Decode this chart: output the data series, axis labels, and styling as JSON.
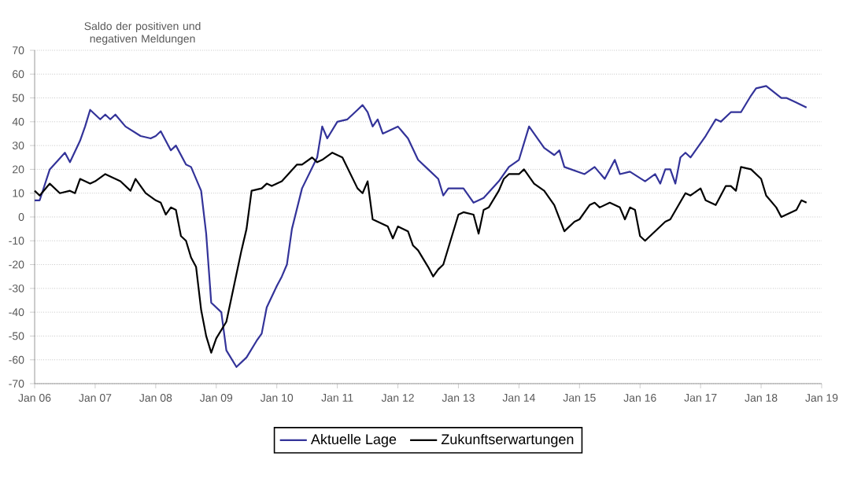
{
  "chart_data": {
    "type": "line",
    "ylabel": "Saldo der positiven und negativen Meldungen",
    "x": [
      "2006-01",
      "2006-02",
      "2006-04",
      "2006-07",
      "2006-08",
      "2006-10",
      "2006-11",
      "2006-12",
      "2007-02",
      "2007-03",
      "2007-04",
      "2007-05",
      "2007-07",
      "2007-10",
      "2007-12",
      "2008-01",
      "2008-02",
      "2008-04",
      "2008-05",
      "2008-07",
      "2008-08",
      "2008-10",
      "2008-11",
      "2008-12",
      "2009-02",
      "2009-03",
      "2009-05",
      "2009-07",
      "2009-09",
      "2009-10",
      "2009-11",
      "2010-01",
      "2010-02",
      "2010-03",
      "2010-04",
      "2010-06",
      "2010-09",
      "2010-10",
      "2010-11",
      "2011-01",
      "2011-03",
      "2011-05",
      "2011-06",
      "2011-07",
      "2011-08",
      "2011-09",
      "2011-10",
      "2012-01",
      "2012-03",
      "2012-05",
      "2012-07",
      "2012-09",
      "2012-10",
      "2012-11",
      "2013-02",
      "2013-04",
      "2013-06",
      "2013-09",
      "2013-11",
      "2014-01",
      "2014-03",
      "2014-06",
      "2014-08",
      "2014-09",
      "2014-10",
      "2015-02",
      "2015-04",
      "2015-06",
      "2015-08",
      "2015-09",
      "2015-11",
      "2016-02",
      "2016-04",
      "2016-05",
      "2016-06",
      "2016-07",
      "2016-08",
      "2016-09",
      "2016-10",
      "2016-11",
      "2017-02",
      "2017-04",
      "2017-05",
      "2017-07",
      "2017-09",
      "2017-11",
      "2017-12",
      "2018-02",
      "2018-05",
      "2018-06",
      "2018-08",
      "2018-10"
    ],
    "series": [
      {
        "name": "Aktuelle Lage",
        "color": "#333399",
        "values": [
          7,
          7,
          20,
          27,
          23,
          32,
          38,
          45,
          41,
          43,
          41,
          43,
          38,
          34,
          33,
          34,
          36,
          28,
          30,
          22,
          21,
          11,
          -7,
          -36,
          -40,
          -56,
          -63,
          -59,
          -52,
          -49,
          -38,
          -29,
          -25,
          -20,
          -5,
          12,
          25,
          38,
          33,
          40,
          41,
          45,
          47,
          44,
          38,
          41,
          35,
          38,
          33,
          24,
          20,
          16,
          9,
          12,
          12,
          6,
          8,
          15,
          21,
          24,
          38,
          29,
          26,
          28,
          21,
          18,
          21,
          16,
          24,
          18,
          19,
          15,
          18,
          14,
          20,
          20,
          14,
          25,
          27,
          25,
          34,
          41,
          40,
          44,
          44,
          51,
          54,
          55,
          50,
          50,
          48,
          46
        ]
      },
      {
        "name": "Zukunftserwartungen",
        "color": "#000000",
        "x": [
          "2006-01",
          "2006-02",
          "2006-04",
          "2006-06",
          "2006-08",
          "2006-09",
          "2006-10",
          "2006-12",
          "2007-01",
          "2007-03",
          "2007-05",
          "2007-06",
          "2007-08",
          "2007-09",
          "2007-11",
          "2008-01",
          "2008-02",
          "2008-03",
          "2008-04",
          "2008-05",
          "2008-06",
          "2008-07",
          "2008-08",
          "2008-09",
          "2008-10",
          "2008-11",
          "2008-12",
          "2009-01",
          "2009-03",
          "2009-04",
          "2009-06",
          "2009-07",
          "2009-08",
          "2009-10",
          "2009-11",
          "2009-12",
          "2010-02",
          "2010-05",
          "2010-06",
          "2010-08",
          "2010-09",
          "2010-10",
          "2010-12",
          "2011-02",
          "2011-05",
          "2011-06",
          "2011-07",
          "2011-08",
          "2011-10",
          "2011-11",
          "2011-12",
          "2012-01",
          "2012-03",
          "2012-04",
          "2012-05",
          "2012-07",
          "2012-08",
          "2012-09",
          "2012-10",
          "2013-01",
          "2013-02",
          "2013-04",
          "2013-05",
          "2013-06",
          "2013-07",
          "2013-09",
          "2013-10",
          "2013-11",
          "2014-01",
          "2014-02",
          "2014-04",
          "2014-06",
          "2014-08",
          "2014-10",
          "2014-12",
          "2015-01",
          "2015-03",
          "2015-04",
          "2015-05",
          "2015-07",
          "2015-09",
          "2015-10",
          "2015-11",
          "2015-12",
          "2016-01",
          "2016-02",
          "2016-04",
          "2016-06",
          "2016-07",
          "2016-10",
          "2016-11",
          "2017-01",
          "2017-02",
          "2017-04",
          "2017-06",
          "2017-07",
          "2017-08",
          "2017-09",
          "2017-11",
          "2018-01",
          "2018-02",
          "2018-04",
          "2018-05",
          "2018-07",
          "2018-08",
          "2018-09",
          "2018-10"
        ],
        "values": [
          11,
          9,
          14,
          10,
          11,
          10,
          16,
          14,
          15,
          18,
          16,
          15,
          11,
          16,
          10,
          7,
          6,
          1,
          4,
          3,
          -8,
          -10,
          -17,
          -21,
          -39,
          -50,
          -57,
          -51,
          -44,
          -34,
          -14,
          -5,
          11,
          12,
          14,
          13,
          15,
          22,
          22,
          25,
          23,
          24,
          27,
          25,
          12,
          10,
          15,
          -1,
          -3,
          -4,
          -9,
          -4,
          -6,
          -12,
          -14,
          -21,
          -25,
          -22,
          -20,
          1,
          2,
          1,
          -7,
          3,
          4,
          11,
          16,
          18,
          18,
          20,
          14,
          11,
          5,
          -6,
          -2,
          -1,
          5,
          6,
          4,
          6,
          4,
          -1,
          4,
          3,
          -8,
          -10,
          -6,
          -2,
          -1,
          10,
          9,
          12,
          7,
          5,
          13,
          13,
          11,
          21,
          20,
          16,
          9,
          4,
          0,
          2,
          3,
          7,
          6
        ]
      }
    ],
    "xlim": [
      "2006-01",
      "2019-01"
    ],
    "xticks": [
      {
        "value": "2006-01",
        "label": "Jan 06"
      },
      {
        "value": "2007-01",
        "label": "Jan 07"
      },
      {
        "value": "2008-01",
        "label": "Jan 08"
      },
      {
        "value": "2009-01",
        "label": "Jan 09"
      },
      {
        "value": "2010-01",
        "label": "Jan 10"
      },
      {
        "value": "2011-01",
        "label": "Jan 11"
      },
      {
        "value": "2012-01",
        "label": "Jan 12"
      },
      {
        "value": "2013-01",
        "label": "Jan 13"
      },
      {
        "value": "2014-01",
        "label": "Jan 14"
      },
      {
        "value": "2015-01",
        "label": "Jan 15"
      },
      {
        "value": "2016-01",
        "label": "Jan 16"
      },
      {
        "value": "2017-01",
        "label": "Jan 17"
      },
      {
        "value": "2018-01",
        "label": "Jan 18"
      },
      {
        "value": "2019-01",
        "label": "Jan 19"
      }
    ],
    "ylim": [
      -70,
      70
    ],
    "yticks": [
      -70,
      -60,
      -50,
      -40,
      -30,
      -20,
      -10,
      0,
      10,
      20,
      30,
      40,
      50,
      60,
      70
    ],
    "grid": "y",
    "legend": "bottom",
    "line_style": "solid",
    "marker": "none"
  }
}
